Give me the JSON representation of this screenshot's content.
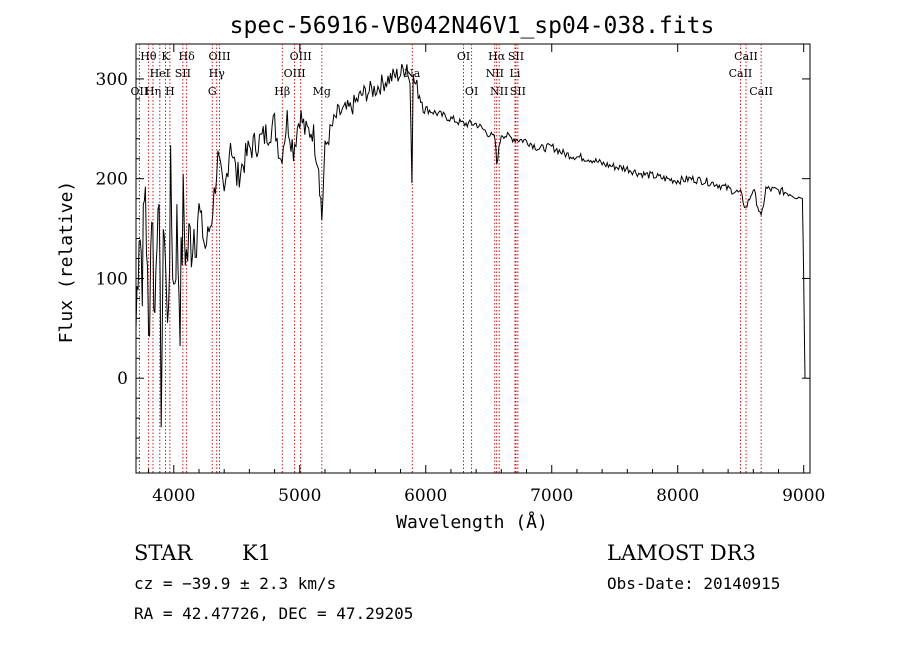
{
  "chart_data": {
    "type": "line",
    "title": "spec-56916-VB042N46V1_sp04-038.fits",
    "xlabel": "Wavelength (Å)",
    "ylabel": "Flux (relative)",
    "xlim": [
      3700,
      9050
    ],
    "ylim": [
      -95,
      335
    ],
    "xticks": [
      4000,
      5000,
      6000,
      7000,
      8000,
      9000
    ],
    "xtick_labels": [
      "4000",
      "5000",
      "6000",
      "7000",
      "8000",
      "9000"
    ],
    "yticks": [
      0,
      100,
      200,
      300
    ],
    "ytick_labels": [
      "0",
      "100",
      "200",
      "300"
    ],
    "grid": false,
    "series": [
      {
        "name": "spectrum",
        "x": [
          3700,
          3725,
          3750,
          3775,
          3800,
          3825,
          3850,
          3875,
          3900,
          3925,
          3950,
          3975,
          4000,
          4025,
          4050,
          4075,
          4100,
          4150,
          4200,
          4250,
          4300,
          4350,
          4400,
          4450,
          4500,
          4600,
          4700,
          4800,
          4850,
          4900,
          4950,
          5000,
          5050,
          5100,
          5150,
          5175,
          5200,
          5250,
          5300,
          5400,
          5500,
          5600,
          5700,
          5800,
          5850,
          5875,
          5890,
          5900,
          5950,
          6000,
          6100,
          6200,
          6300,
          6400,
          6500,
          6550,
          6563,
          6600,
          6700,
          6800,
          6900,
          7000,
          7100,
          7200,
          7300,
          7400,
          7500,
          7600,
          7700,
          7800,
          7900,
          8000,
          8100,
          8200,
          8300,
          8400,
          8500,
          8540,
          8600,
          8662,
          8700,
          8800,
          8900,
          8950,
          8990,
          9000,
          9010
        ],
        "values": [
          50,
          160,
          110,
          200,
          30,
          180,
          60,
          210,
          -15,
          170,
          40,
          190,
          90,
          150,
          70,
          170,
          120,
          150,
          170,
          130,
          160,
          220,
          180,
          240,
          200,
          230,
          240,
          255,
          220,
          260,
          230,
          265,
          245,
          250,
          215,
          160,
          230,
          250,
          265,
          270,
          285,
          290,
          300,
          305,
          315,
          295,
          205,
          300,
          285,
          270,
          265,
          260,
          255,
          255,
          245,
          240,
          215,
          245,
          240,
          238,
          230,
          232,
          225,
          222,
          220,
          215,
          212,
          210,
          205,
          203,
          200,
          198,
          200,
          198,
          195,
          190,
          185,
          170,
          190,
          160,
          190,
          188,
          185,
          182,
          180,
          100,
          0
        ]
      }
    ],
    "lines": [
      {
        "name": "H-theta",
        "label": "Hθ",
        "wl": 3798,
        "row": 1
      },
      {
        "name": "O-II",
        "label": "OII",
        "wl": 3727,
        "row": 3
      },
      {
        "name": "He-I",
        "label": "HeI",
        "wl": 3889,
        "row": 2
      },
      {
        "name": "H-eta",
        "label": "Hη",
        "wl": 3835,
        "row": 3
      },
      {
        "name": "K",
        "label": "K",
        "wl": 3934,
        "row": 1
      },
      {
        "name": "H",
        "label": "H",
        "wl": 3969,
        "row": 3
      },
      {
        "name": "S-II-blue",
        "label": "SII",
        "wl": 4072,
        "row": 2
      },
      {
        "name": "H-delta",
        "label": "Hδ",
        "wl": 4102,
        "row": 1
      },
      {
        "name": "O-III-4363",
        "label": "OIII",
        "wl": 4363,
        "row": 1
      },
      {
        "name": "H-gamma",
        "label": "Hγ",
        "wl": 4341,
        "row": 2
      },
      {
        "name": "G",
        "label": "G",
        "wl": 4305,
        "row": 3
      },
      {
        "name": "H-beta",
        "label": "Hβ",
        "wl": 4861,
        "row": 3
      },
      {
        "name": "O-III-5007",
        "label": "OIII",
        "wl": 5007,
        "row": 1
      },
      {
        "name": "O-III-4959",
        "label": "OIII",
        "wl": 4959,
        "row": 2
      },
      {
        "name": "Mg",
        "label": "Mg",
        "wl": 5175,
        "row": 3
      },
      {
        "name": "Na",
        "label": "Na",
        "wl": 5893,
        "row": 2
      },
      {
        "name": "O-I-6300",
        "label": "OI",
        "wl": 6300,
        "row": 1
      },
      {
        "name": "O-I-6364",
        "label": "OI",
        "wl": 6364,
        "row": 3
      },
      {
        "name": "H-alpha",
        "label": "Hα",
        "wl": 6563,
        "row": 1
      },
      {
        "name": "N-II-6548",
        "label": "NII",
        "wl": 6548,
        "row": 2
      },
      {
        "name": "N-II-6583",
        "label": "NII",
        "wl": 6583,
        "row": 3
      },
      {
        "name": "S-II-6716",
        "label": "SII",
        "wl": 6716,
        "row": 1
      },
      {
        "name": "Li",
        "label": "Li",
        "wl": 6708,
        "row": 2
      },
      {
        "name": "S-II-6731",
        "label": "SII",
        "wl": 6731,
        "row": 3
      },
      {
        "name": "Ca-II-8542",
        "label": "CaII",
        "wl": 8542,
        "row": 1
      },
      {
        "name": "Ca-II-8498",
        "label": "CaII",
        "wl": 8498,
        "row": 2
      },
      {
        "name": "Ca-II-8662",
        "label": "CaII",
        "wl": 8662,
        "row": 3
      }
    ]
  },
  "info": {
    "class": "STAR",
    "subclass": "K1",
    "cz": "cz = −39.9 ± 2.3 km/s",
    "radec": "RA =  42.47726, DEC =  47.29205",
    "survey": "LAMOST DR3",
    "obsdate": "Obs-Date: 20140915"
  },
  "colors": {
    "line_marker": "#cc0000",
    "spectrum": "#000000"
  }
}
